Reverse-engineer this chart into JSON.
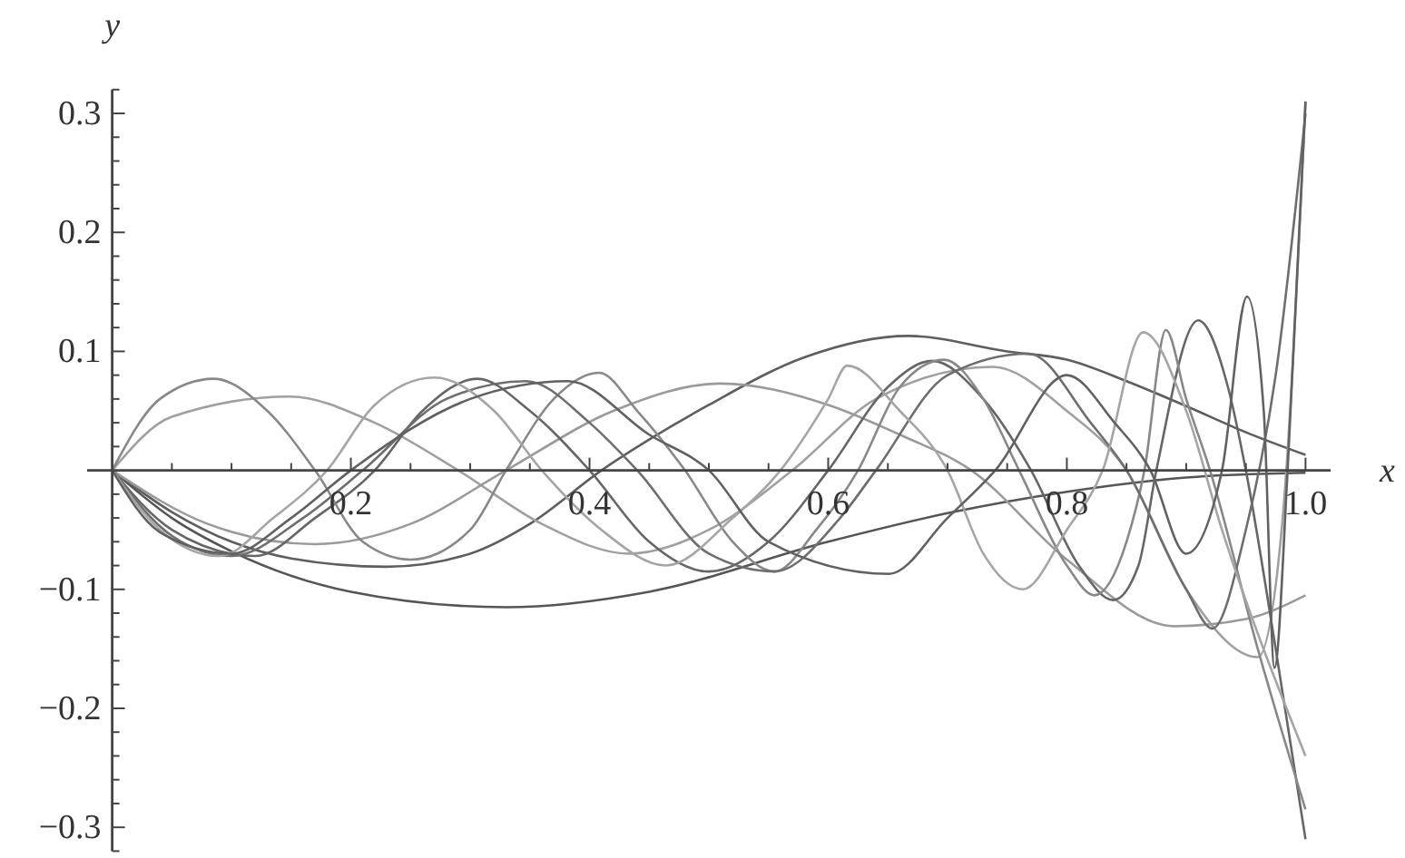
{
  "chart_data": {
    "type": "line",
    "xlabel": "x",
    "ylabel": "y",
    "xlim": [
      -0.021,
      1.021
    ],
    "ylim": [
      -0.32,
      0.32
    ],
    "xticks": [
      {
        "value": 0.05,
        "label": null
      },
      {
        "value": 0.1,
        "label": null
      },
      {
        "value": 0.15,
        "label": null
      },
      0.2,
      {
        "value": 0.25,
        "label": null
      },
      {
        "value": 0.3,
        "label": null
      },
      {
        "value": 0.35,
        "label": null
      },
      0.4,
      {
        "value": 0.45,
        "label": null
      },
      {
        "value": 0.5,
        "label": null
      },
      {
        "value": 0.55,
        "label": null
      },
      0.6,
      {
        "value": 0.65,
        "label": null
      },
      {
        "value": 0.7,
        "label": null
      },
      {
        "value": 0.75,
        "label": null
      },
      0.8,
      {
        "value": 0.85,
        "label": null
      },
      {
        "value": 0.9,
        "label": null
      },
      {
        "value": 0.95,
        "label": null
      },
      {
        "value": 1,
        "label": "1.0"
      }
    ],
    "yticks": [
      {
        "value": -0.32,
        "label": null
      },
      {
        "value": -0.3,
        "label": "−0.3"
      },
      {
        "value": -0.28,
        "label": null
      },
      {
        "value": -0.26,
        "label": null
      },
      {
        "value": -0.24,
        "label": null
      },
      {
        "value": -0.22,
        "label": null
      },
      {
        "value": -0.2,
        "label": "−0.2"
      },
      {
        "value": -0.18,
        "label": null
      },
      {
        "value": -0.16,
        "label": null
      },
      {
        "value": -0.14,
        "label": null
      },
      {
        "value": -0.12,
        "label": null
      },
      {
        "value": -0.1,
        "label": "−0.1"
      },
      {
        "value": -0.08,
        "label": null
      },
      {
        "value": -0.06,
        "label": null
      },
      {
        "value": -0.04,
        "label": null
      },
      {
        "value": -0.02,
        "label": null
      },
      {
        "value": 0.02,
        "label": null
      },
      {
        "value": 0.04,
        "label": null
      },
      {
        "value": 0.06,
        "label": null
      },
      {
        "value": 0.08,
        "label": null
      },
      0.1,
      {
        "value": 0.12,
        "label": null
      },
      {
        "value": 0.14,
        "label": null
      },
      {
        "value": 0.16,
        "label": null
      },
      {
        "value": 0.18,
        "label": null
      },
      0.2,
      {
        "value": 0.22,
        "label": null
      },
      {
        "value": 0.24,
        "label": null
      },
      {
        "value": 0.26,
        "label": null
      },
      {
        "value": 0.28,
        "label": null
      },
      0.3,
      {
        "value": 0.32,
        "label": null
      }
    ],
    "line_style": "solid",
    "series": [
      {
        "color": "#555555",
        "x": [
          0,
          0.05,
          0.1,
          0.2,
          0.33,
          0.45,
          0.6,
          0.7,
          0.8,
          0.9,
          1
        ],
        "values": [
          0,
          -0.04,
          -0.068,
          -0.102,
          -0.115,
          -0.102,
          -0.06,
          -0.036,
          -0.018,
          -0.006,
          -0.002
        ]
      },
      {
        "color": "#5e5e5e",
        "x": [
          0,
          0.05,
          0.1,
          0.15,
          0.23,
          0.3,
          0.35,
          0.41,
          0.5,
          0.58,
          0.667,
          0.75,
          0.8,
          0.85,
          0.9,
          0.95,
          1
        ],
        "values": [
          0,
          -0.035,
          -0.06,
          -0.074,
          -0.081,
          -0.07,
          -0.045,
          0,
          0.055,
          0.095,
          0.113,
          0.1,
          0.093,
          0.075,
          0.054,
          0.032,
          0.013
        ]
      },
      {
        "color": "#a0a0a0",
        "x": [
          0,
          0.05,
          0.149,
          0.22,
          0.29,
          0.36,
          0.433,
          0.5,
          0.57,
          0.64,
          0.738,
          0.8,
          0.85,
          0.9,
          0.96,
          0.98,
          1
        ],
        "values": [
          0,
          0.045,
          0.062,
          0.04,
          0,
          -0.045,
          -0.07,
          -0.05,
          0,
          0.06,
          0.087,
          0.05,
          0,
          -0.1,
          -0.157,
          -0.05,
          0.31
        ]
      },
      {
        "color": "#9a9a9a",
        "x": [
          0,
          0.08,
          0.17,
          0.25,
          0.33,
          0.42,
          0.51,
          0.6,
          0.66,
          0.72,
          0.8,
          0.89,
          0.95,
          1
        ],
        "values": [
          0,
          -0.045,
          -0.062,
          -0.045,
          0,
          0.05,
          0.073,
          0.055,
          0.03,
          0,
          -0.075,
          -0.131,
          -0.125,
          -0.105
        ]
      },
      {
        "color": "#666666",
        "x": [
          0,
          0.05,
          0.12,
          0.17,
          0.22,
          0.26,
          0.306,
          0.35,
          0.4,
          0.45,
          0.5,
          0.55,
          0.6,
          0.65,
          0.687,
          0.73,
          0.77,
          0.81,
          0.839,
          0.86,
          0.875,
          0.91,
          0.935,
          0.95,
          0.975,
          1
        ],
        "values": [
          0,
          -0.05,
          -0.072,
          -0.04,
          0,
          0.05,
          0.077,
          0.05,
          0,
          -0.06,
          -0.085,
          -0.06,
          0,
          0.07,
          0.092,
          0.06,
          0,
          -0.08,
          -0.109,
          -0.08,
          0,
          0.126,
          0.07,
          0,
          -0.15,
          -0.31
        ]
      },
      {
        "color": "#888888",
        "x": [
          0,
          0.04,
          0.085,
          0.13,
          0.17,
          0.21,
          0.25,
          0.3,
          0.33,
          0.37,
          0.408,
          0.44,
          0.48,
          0.52,
          0.555,
          0.59,
          0.625,
          0.66,
          0.697,
          0.73,
          0.76,
          0.8,
          0.823,
          0.85,
          0.865,
          0.883,
          0.9,
          0.92,
          0.96,
          1
        ],
        "values": [
          0,
          0.06,
          0.077,
          0.05,
          0,
          -0.06,
          -0.075,
          -0.05,
          0,
          0.06,
          0.082,
          0.05,
          0,
          -0.06,
          -0.085,
          -0.05,
          0,
          0.07,
          0.093,
          0.06,
          0,
          -0.08,
          -0.105,
          -0.06,
          0,
          0.118,
          0.06,
          0,
          -0.15,
          -0.285
        ]
      },
      {
        "color": "#6e6e6e",
        "x": [
          0,
          0.05,
          0.1,
          0.16,
          0.21,
          0.28,
          0.347,
          0.4,
          0.44,
          0.5,
          0.555,
          0.61,
          0.64,
          0.7,
          0.768,
          0.82,
          0.85,
          0.9,
          0.922,
          0.95,
          0.975,
          1
        ],
        "values": [
          0,
          -0.055,
          -0.072,
          -0.04,
          0,
          0.06,
          0.075,
          0.04,
          0,
          -0.07,
          -0.085,
          -0.04,
          0,
          0.08,
          0.098,
          0.04,
          0,
          -0.1,
          -0.133,
          -0.05,
          0.08,
          0.3
        ]
      },
      {
        "color": "#a5a5a5",
        "x": [
          0,
          0.04,
          0.09,
          0.135,
          0.18,
          0.22,
          0.27,
          0.32,
          0.36,
          0.41,
          0.464,
          0.52,
          0.56,
          0.6,
          0.616,
          0.66,
          0.7,
          0.73,
          0.763,
          0.8,
          0.83,
          0.864,
          0.9,
          0.93,
          1
        ],
        "values": [
          0,
          -0.05,
          -0.072,
          -0.04,
          0,
          0.055,
          0.078,
          0.05,
          0,
          -0.05,
          -0.08,
          -0.04,
          0,
          0.06,
          0.088,
          0.05,
          0,
          -0.07,
          -0.1,
          -0.05,
          0,
          0.116,
          0.05,
          -0.05,
          -0.24
        ]
      },
      {
        "color": "#616161",
        "x": [
          0,
          0.04,
          0.1,
          0.15,
          0.2,
          0.3,
          0.382,
          0.45,
          0.5,
          0.55,
          0.651,
          0.7,
          0.74,
          0.8,
          0.84,
          0.87,
          0.9,
          0.93,
          0.951,
          0.965,
          0.974,
          0.985,
          1
        ],
        "values": [
          0,
          -0.052,
          -0.07,
          -0.04,
          0,
          0.06,
          0.075,
          0.03,
          0,
          -0.06,
          -0.087,
          -0.04,
          0,
          0.08,
          0.04,
          0,
          -0.07,
          0,
          0.146,
          0.05,
          -0.166,
          0,
          0.31
        ]
      }
    ]
  }
}
